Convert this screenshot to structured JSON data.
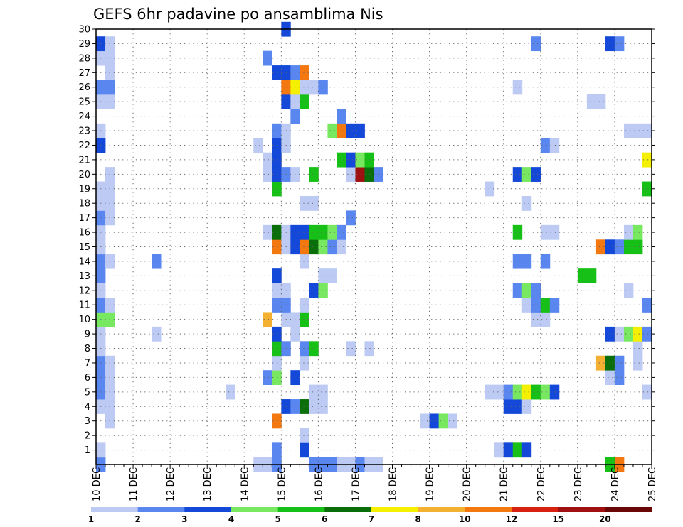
{
  "chart_data": {
    "type": "heatmap",
    "title": "GEFS 6hr padavine po ansamblima Nis",
    "xlabel": "",
    "ylabel": "",
    "x_ticks": [
      "10 DEC",
      "11 DEC",
      "12 DEC",
      "13 DEC",
      "14 DEC",
      "15 DEC",
      "16 DEC",
      "17 DEC",
      "18 DEC",
      "19 DEC",
      "20 DEC",
      "21 DEC",
      "22 DEC",
      "23 DEC",
      "24 DEC",
      "25 DEC"
    ],
    "x_range_days": [
      10,
      25
    ],
    "time_step_hours": 6,
    "y_ticks": [
      1,
      2,
      3,
      4,
      5,
      6,
      7,
      8,
      9,
      10,
      11,
      12,
      13,
      14,
      15,
      16,
      17,
      18,
      19,
      20,
      21,
      22,
      23,
      24,
      25,
      26,
      27,
      28,
      29,
      30
    ],
    "y_range": [
      0,
      30
    ],
    "grid": true,
    "colorbar": {
      "labels": [
        "1",
        "2",
        "3",
        "4",
        "5",
        "6",
        "7",
        "8",
        "10",
        "12",
        "15",
        "20"
      ],
      "colors": [
        "#bccaf4",
        "#5a86f0",
        "#1448d8",
        "#78e860",
        "#16c016",
        "#0a6e0a",
        "#f4f000",
        "#f4b030",
        "#f47810",
        "#d82010",
        "#a01010",
        "#6a0808"
      ]
    },
    "cells_note": "each cell = [x_start_day, member_row, color_level]",
    "cells": [
      [
        10.0,
        0,
        1
      ],
      [
        10.0,
        1,
        0
      ],
      [
        10.0,
        4,
        0
      ],
      [
        10.0,
        5,
        1
      ],
      [
        10.0,
        6,
        1
      ],
      [
        10.0,
        7,
        1
      ],
      [
        10.0,
        8,
        0
      ],
      [
        10.0,
        9,
        0
      ],
      [
        10.0,
        10,
        3
      ],
      [
        10.0,
        11,
        1
      ],
      [
        10.0,
        12,
        0
      ],
      [
        10.0,
        13,
        1
      ],
      [
        10.0,
        14,
        1
      ],
      [
        10.0,
        15,
        0
      ],
      [
        10.0,
        16,
        0
      ],
      [
        10.0,
        17,
        1
      ],
      [
        10.0,
        18,
        0
      ],
      [
        10.0,
        19,
        0
      ],
      [
        10.0,
        22,
        2
      ],
      [
        10.0,
        23,
        0
      ],
      [
        10.0,
        25,
        0
      ],
      [
        10.0,
        26,
        1
      ],
      [
        10.0,
        28,
        0
      ],
      [
        10.0,
        29,
        2
      ],
      [
        10.25,
        3,
        0
      ],
      [
        10.25,
        4,
        0
      ],
      [
        10.25,
        5,
        0
      ],
      [
        10.25,
        6,
        0
      ],
      [
        10.25,
        7,
        0
      ],
      [
        10.25,
        10,
        3
      ],
      [
        10.25,
        11,
        0
      ],
      [
        10.25,
        14,
        0
      ],
      [
        10.25,
        17,
        0
      ],
      [
        10.25,
        18,
        0
      ],
      [
        10.25,
        19,
        0
      ],
      [
        10.25,
        20,
        0
      ],
      [
        10.25,
        25,
        0
      ],
      [
        10.25,
        26,
        1
      ],
      [
        10.25,
        27,
        0
      ],
      [
        10.25,
        28,
        0
      ],
      [
        10.25,
        29,
        0
      ],
      [
        11.5,
        9,
        0
      ],
      [
        11.5,
        14,
        1
      ],
      [
        13.5,
        5,
        0
      ],
      [
        14.25,
        0,
        0
      ],
      [
        14.25,
        22,
        0
      ],
      [
        14.5,
        0,
        0
      ],
      [
        14.5,
        6,
        1
      ],
      [
        14.5,
        10,
        7
      ],
      [
        14.5,
        16,
        0
      ],
      [
        14.5,
        20,
        0
      ],
      [
        14.5,
        21,
        0
      ],
      [
        14.5,
        28,
        1
      ],
      [
        14.75,
        0,
        1
      ],
      [
        14.75,
        1,
        1
      ],
      [
        14.75,
        3,
        8
      ],
      [
        14.75,
        6,
        3
      ],
      [
        14.75,
        7,
        0
      ],
      [
        14.75,
        8,
        4
      ],
      [
        14.75,
        9,
        2
      ],
      [
        14.75,
        11,
        1
      ],
      [
        14.75,
        12,
        0
      ],
      [
        14.75,
        13,
        2
      ],
      [
        14.75,
        15,
        8
      ],
      [
        14.75,
        16,
        5
      ],
      [
        14.75,
        19,
        4
      ],
      [
        14.75,
        20,
        2
      ],
      [
        14.75,
        21,
        2
      ],
      [
        14.75,
        22,
        2
      ],
      [
        14.75,
        23,
        1
      ],
      [
        14.75,
        27,
        2
      ],
      [
        15.0,
        4,
        2
      ],
      [
        15.0,
        8,
        1
      ],
      [
        15.0,
        10,
        0
      ],
      [
        15.0,
        11,
        1
      ],
      [
        15.0,
        12,
        0
      ],
      [
        15.0,
        15,
        0
      ],
      [
        15.0,
        16,
        0
      ],
      [
        15.0,
        20,
        1
      ],
      [
        15.0,
        22,
        0
      ],
      [
        15.0,
        23,
        0
      ],
      [
        15.0,
        25,
        2
      ],
      [
        15.0,
        26,
        8
      ],
      [
        15.0,
        27,
        2
      ],
      [
        15.0,
        30,
        2
      ],
      [
        15.25,
        4,
        1
      ],
      [
        15.25,
        6,
        2
      ],
      [
        15.25,
        9,
        0
      ],
      [
        15.25,
        10,
        0
      ],
      [
        15.25,
        15,
        2
      ],
      [
        15.25,
        16,
        2
      ],
      [
        15.25,
        20,
        0
      ],
      [
        15.25,
        24,
        1
      ],
      [
        15.25,
        25,
        0
      ],
      [
        15.25,
        26,
        6
      ],
      [
        15.25,
        27,
        1
      ],
      [
        15.5,
        1,
        2
      ],
      [
        15.5,
        2,
        0
      ],
      [
        15.5,
        4,
        5
      ],
      [
        15.5,
        7,
        0
      ],
      [
        15.5,
        8,
        1
      ],
      [
        15.5,
        10,
        4
      ],
      [
        15.5,
        11,
        0
      ],
      [
        15.5,
        14,
        0
      ],
      [
        15.5,
        15,
        8
      ],
      [
        15.5,
        16,
        2
      ],
      [
        15.5,
        18,
        0
      ],
      [
        15.5,
        25,
        4
      ],
      [
        15.5,
        26,
        0
      ],
      [
        15.5,
        27,
        8
      ],
      [
        15.75,
        0,
        1
      ],
      [
        15.75,
        4,
        0
      ],
      [
        15.75,
        5,
        0
      ],
      [
        15.75,
        8,
        4
      ],
      [
        15.75,
        12,
        2
      ],
      [
        15.75,
        15,
        5
      ],
      [
        15.75,
        16,
        4
      ],
      [
        15.75,
        18,
        0
      ],
      [
        15.75,
        20,
        4
      ],
      [
        15.75,
        26,
        0
      ],
      [
        16.0,
        0,
        1
      ],
      [
        16.0,
        4,
        0
      ],
      [
        16.0,
        5,
        0
      ],
      [
        16.0,
        12,
        3
      ],
      [
        16.0,
        13,
        0
      ],
      [
        16.0,
        15,
        3
      ],
      [
        16.0,
        16,
        4
      ],
      [
        16.0,
        26,
        1
      ],
      [
        16.25,
        0,
        1
      ],
      [
        16.25,
        13,
        0
      ],
      [
        16.25,
        15,
        1
      ],
      [
        16.25,
        16,
        3
      ],
      [
        16.25,
        23,
        3
      ],
      [
        16.5,
        0,
        0
      ],
      [
        16.5,
        15,
        0
      ],
      [
        16.5,
        16,
        1
      ],
      [
        16.5,
        21,
        4
      ],
      [
        16.5,
        23,
        8
      ],
      [
        16.5,
        24,
        1
      ],
      [
        16.75,
        0,
        0
      ],
      [
        16.75,
        8,
        0
      ],
      [
        16.75,
        17,
        1
      ],
      [
        16.75,
        20,
        0
      ],
      [
        16.75,
        21,
        2
      ],
      [
        16.75,
        23,
        2
      ],
      [
        17.0,
        0,
        1
      ],
      [
        17.0,
        20,
        10
      ],
      [
        17.0,
        21,
        3
      ],
      [
        17.0,
        23,
        2
      ],
      [
        17.25,
        0,
        0
      ],
      [
        17.25,
        8,
        0
      ],
      [
        17.25,
        20,
        5
      ],
      [
        17.25,
        21,
        4
      ],
      [
        17.5,
        0,
        0
      ],
      [
        17.5,
        20,
        1
      ],
      [
        18.75,
        3,
        0
      ],
      [
        19.0,
        3,
        2
      ],
      [
        19.25,
        3,
        3
      ],
      [
        19.5,
        3,
        0
      ],
      [
        20.5,
        5,
        0
      ],
      [
        20.5,
        19,
        0
      ],
      [
        20.75,
        1,
        0
      ],
      [
        20.75,
        5,
        0
      ],
      [
        21.0,
        1,
        2
      ],
      [
        21.0,
        4,
        2
      ],
      [
        21.0,
        5,
        1
      ],
      [
        21.25,
        1,
        4
      ],
      [
        21.25,
        4,
        2
      ],
      [
        21.25,
        5,
        3
      ],
      [
        21.25,
        12,
        1
      ],
      [
        21.25,
        14,
        1
      ],
      [
        21.25,
        16,
        4
      ],
      [
        21.25,
        20,
        2
      ],
      [
        21.25,
        26,
        0
      ],
      [
        21.5,
        1,
        2
      ],
      [
        21.5,
        4,
        0
      ],
      [
        21.5,
        5,
        6
      ],
      [
        21.5,
        11,
        0
      ],
      [
        21.5,
        12,
        3
      ],
      [
        21.5,
        14,
        1
      ],
      [
        21.5,
        18,
        0
      ],
      [
        21.5,
        20,
        3
      ],
      [
        21.75,
        5,
        4
      ],
      [
        21.75,
        10,
        0
      ],
      [
        21.75,
        11,
        1
      ],
      [
        21.75,
        12,
        1
      ],
      [
        21.75,
        20,
        2
      ],
      [
        21.75,
        29,
        1
      ],
      [
        22.0,
        5,
        3
      ],
      [
        22.0,
        10,
        0
      ],
      [
        22.0,
        11,
        4
      ],
      [
        22.0,
        14,
        1
      ],
      [
        22.0,
        16,
        0
      ],
      [
        22.0,
        22,
        1
      ],
      [
        22.25,
        5,
        2
      ],
      [
        22.25,
        11,
        1
      ],
      [
        22.25,
        16,
        0
      ],
      [
        22.25,
        22,
        0
      ],
      [
        23.0,
        13,
        4
      ],
      [
        23.25,
        13,
        4
      ],
      [
        23.25,
        25,
        0
      ],
      [
        23.5,
        7,
        7
      ],
      [
        23.5,
        15,
        8
      ],
      [
        23.5,
        25,
        0
      ],
      [
        23.75,
        0,
        4
      ],
      [
        23.75,
        6,
        0
      ],
      [
        23.75,
        7,
        5
      ],
      [
        23.75,
        9,
        2
      ],
      [
        23.75,
        15,
        2
      ],
      [
        23.75,
        29,
        2
      ],
      [
        24.0,
        0,
        8
      ],
      [
        24.0,
        6,
        1
      ],
      [
        24.0,
        7,
        1
      ],
      [
        24.0,
        9,
        0
      ],
      [
        24.0,
        15,
        1
      ],
      [
        24.0,
        29,
        1
      ],
      [
        24.25,
        9,
        3
      ],
      [
        24.25,
        12,
        0
      ],
      [
        24.25,
        15,
        4
      ],
      [
        24.25,
        16,
        0
      ],
      [
        24.25,
        23,
        0
      ],
      [
        24.5,
        7,
        0
      ],
      [
        24.5,
        8,
        0
      ],
      [
        24.5,
        9,
        6
      ],
      [
        24.5,
        15,
        4
      ],
      [
        24.5,
        16,
        3
      ],
      [
        24.5,
        23,
        0
      ],
      [
        24.75,
        5,
        0
      ],
      [
        24.75,
        9,
        1
      ],
      [
        24.75,
        11,
        1
      ],
      [
        24.75,
        19,
        4
      ],
      [
        24.75,
        21,
        6
      ],
      [
        24.75,
        23,
        0
      ]
    ]
  }
}
